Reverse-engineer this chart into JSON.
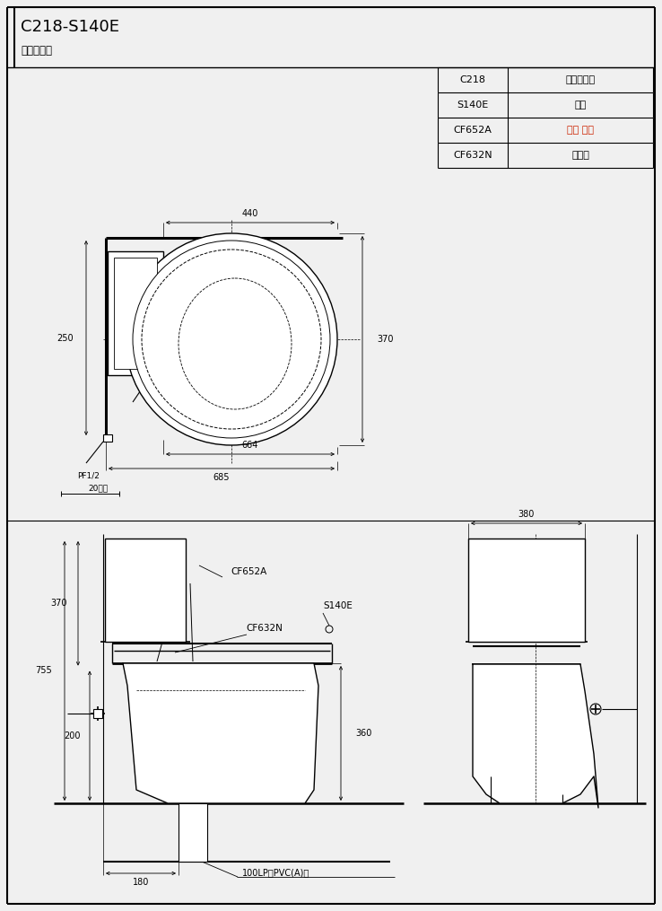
{
  "title": "C218-S140E",
  "subtitle": "兩件式馬桶",
  "bg_color": "#f0f0f0",
  "line_color": "#000000",
  "table": {
    "rows": [
      [
        "C218",
        "兩件式馬桶"
      ],
      [
        "S140E",
        "水箱"
      ],
      [
        "CF652A",
        "水箱 另件"
      ],
      [
        "CF632N",
        "馬桶蓋"
      ]
    ],
    "cf652a_color": "#cc2200"
  },
  "top_view": {
    "dim_440": "440",
    "dim_370": "370",
    "dim_664": "664",
    "dim_685": "685",
    "dim_250": "250",
    "pf_label": "PF1/2",
    "dim_20": "20以內"
  },
  "front_view": {
    "dim_755": "755",
    "dim_370": "370",
    "dim_200": "200",
    "dim_360": "360",
    "dim_180": "180",
    "label_cf652a": "CF652A",
    "label_s140e": "S140E",
    "label_cf632n": "CF632N",
    "label_pipe": "100LP或PVC(A)管"
  },
  "side_view": {
    "dim_380": "380"
  }
}
